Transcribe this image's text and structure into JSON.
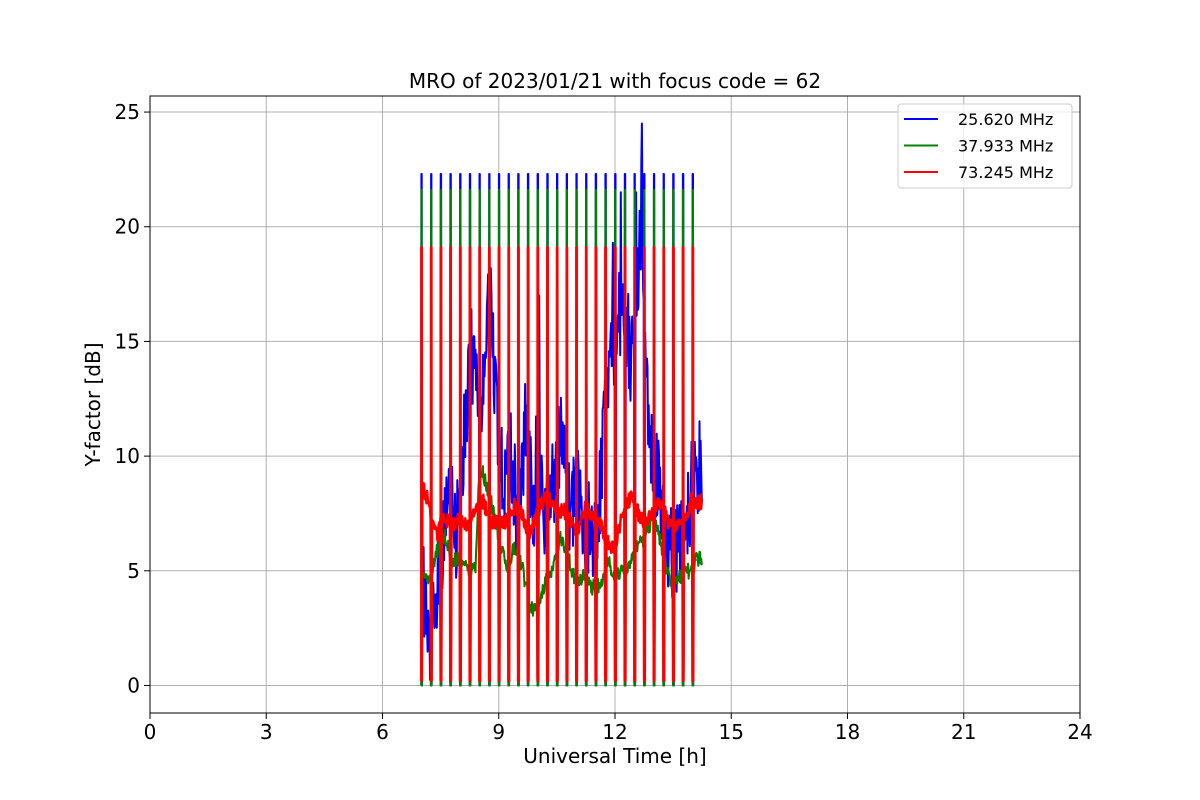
{
  "chart_data": {
    "type": "line",
    "title": "MRO of 2023/01/21 with focus code = 62",
    "xlabel": "Universal Time [h]",
    "ylabel": "Y-factor [dB]",
    "xlim": [
      0,
      24
    ],
    "ylim": [
      -1.2,
      25.7
    ],
    "xticks": [
      0,
      3,
      6,
      9,
      12,
      15,
      18,
      21,
      24
    ],
    "yticks": [
      0,
      5,
      10,
      15,
      20,
      25
    ],
    "grid": true,
    "legend_position": "top-right",
    "pulse_period_h": 0.25,
    "time_range": [
      7.0,
      14.1
    ],
    "series": [
      {
        "name": "25.620 MHz",
        "color": "#0000ff",
        "pulse_peak": 22.3,
        "pulse_min": 0.0,
        "baseline": [
          [
            7.0,
            5.2
          ],
          [
            7.2,
            2.2
          ],
          [
            7.3,
            3.0
          ],
          [
            7.5,
            5.8
          ],
          [
            7.7,
            8.5
          ],
          [
            7.9,
            6.5
          ],
          [
            8.1,
            10.5
          ],
          [
            8.3,
            14.6
          ],
          [
            8.5,
            12.0
          ],
          [
            8.7,
            15.8
          ],
          [
            8.8,
            18.0
          ],
          [
            8.9,
            13.0
          ],
          [
            9.1,
            8.5
          ],
          [
            9.3,
            10.5
          ],
          [
            9.5,
            7.0
          ],
          [
            9.7,
            11.5
          ],
          [
            9.9,
            7.5
          ],
          [
            10.0,
            11.0
          ],
          [
            10.2,
            7.0
          ],
          [
            10.4,
            9.0
          ],
          [
            10.6,
            11.0
          ],
          [
            10.8,
            7.5
          ],
          [
            11.0,
            8.5
          ],
          [
            11.2,
            7.0
          ],
          [
            11.4,
            6.5
          ],
          [
            11.6,
            8.0
          ],
          [
            11.8,
            13.5
          ],
          [
            12.0,
            15.5
          ],
          [
            12.2,
            17.0
          ],
          [
            12.4,
            14.5
          ],
          [
            12.6,
            18.5
          ],
          [
            12.7,
            21.0
          ],
          [
            12.8,
            14.0
          ],
          [
            12.9,
            11.0
          ],
          [
            13.1,
            9.0
          ],
          [
            13.3,
            7.0
          ],
          [
            13.5,
            5.5
          ],
          [
            13.7,
            6.5
          ],
          [
            13.9,
            8.0
          ],
          [
            14.1,
            9.5
          ]
        ],
        "spikes": [
          [
            12.7,
            24.5
          ],
          [
            12.55,
            21.5
          ],
          [
            12.15,
            21.5
          ],
          [
            11.95,
            19.3
          ],
          [
            8.8,
            18.2
          ],
          [
            8.3,
            16.4
          ],
          [
            10.05,
            17.0
          ]
        ]
      },
      {
        "name": "37.933 MHz",
        "color": "#008000",
        "pulse_peak": 21.6,
        "pulse_min": 0.0,
        "baseline": [
          [
            7.0,
            4.8
          ],
          [
            7.2,
            4.4
          ],
          [
            7.4,
            5.8
          ],
          [
            7.6,
            6.5
          ],
          [
            7.8,
            5.5
          ],
          [
            8.0,
            5.5
          ],
          [
            8.2,
            5.0
          ],
          [
            8.4,
            5.0
          ],
          [
            8.5,
            9.5
          ],
          [
            8.6,
            9.2
          ],
          [
            8.8,
            8.0
          ],
          [
            9.0,
            6.5
          ],
          [
            9.2,
            5.0
          ],
          [
            9.4,
            6.0
          ],
          [
            9.6,
            5.2
          ],
          [
            9.8,
            3.5
          ],
          [
            10.0,
            3.2
          ],
          [
            10.2,
            4.5
          ],
          [
            10.4,
            5.0
          ],
          [
            10.6,
            6.5
          ],
          [
            10.8,
            5.5
          ],
          [
            11.0,
            4.5
          ],
          [
            11.2,
            4.8
          ],
          [
            11.4,
            4.3
          ],
          [
            11.6,
            4.3
          ],
          [
            11.8,
            5.5
          ],
          [
            12.0,
            4.8
          ],
          [
            12.2,
            5.0
          ],
          [
            12.4,
            5.3
          ],
          [
            12.6,
            6.2
          ],
          [
            12.8,
            6.5
          ],
          [
            13.0,
            7.5
          ],
          [
            13.2,
            6.0
          ],
          [
            13.4,
            4.6
          ],
          [
            13.6,
            4.6
          ],
          [
            13.8,
            5.0
          ],
          [
            14.0,
            5.0
          ],
          [
            14.1,
            5.5
          ]
        ],
        "spikes": []
      },
      {
        "name": "73.245 MHz",
        "color": "#ff0000",
        "pulse_peak": 19.1,
        "pulse_min": 0.2,
        "baseline": [
          [
            7.0,
            8.7
          ],
          [
            7.2,
            8.0
          ],
          [
            7.3,
            7.0
          ],
          [
            7.4,
            6.5
          ],
          [
            7.6,
            7.3
          ],
          [
            7.8,
            7.0
          ],
          [
            8.0,
            7.2
          ],
          [
            8.2,
            7.0
          ],
          [
            8.4,
            7.5
          ],
          [
            8.6,
            8.0
          ],
          [
            8.8,
            7.2
          ],
          [
            9.0,
            7.0
          ],
          [
            9.2,
            7.2
          ],
          [
            9.4,
            7.8
          ],
          [
            9.6,
            7.5
          ],
          [
            9.8,
            6.5
          ],
          [
            10.0,
            7.5
          ],
          [
            10.2,
            8.2
          ],
          [
            10.4,
            8.0
          ],
          [
            10.6,
            7.6
          ],
          [
            10.8,
            7.6
          ],
          [
            11.0,
            6.5
          ],
          [
            11.2,
            7.7
          ],
          [
            11.4,
            7.5
          ],
          [
            11.6,
            7.2
          ],
          [
            11.8,
            6.2
          ],
          [
            12.0,
            6.0
          ],
          [
            12.2,
            7.5
          ],
          [
            12.4,
            8.2
          ],
          [
            12.6,
            7.5
          ],
          [
            12.8,
            7.0
          ],
          [
            13.0,
            7.6
          ],
          [
            13.2,
            8.0
          ],
          [
            13.4,
            7.0
          ],
          [
            13.6,
            7.0
          ],
          [
            13.8,
            7.3
          ],
          [
            14.0,
            8.2
          ],
          [
            14.1,
            8.0
          ]
        ],
        "spikes": []
      }
    ]
  }
}
